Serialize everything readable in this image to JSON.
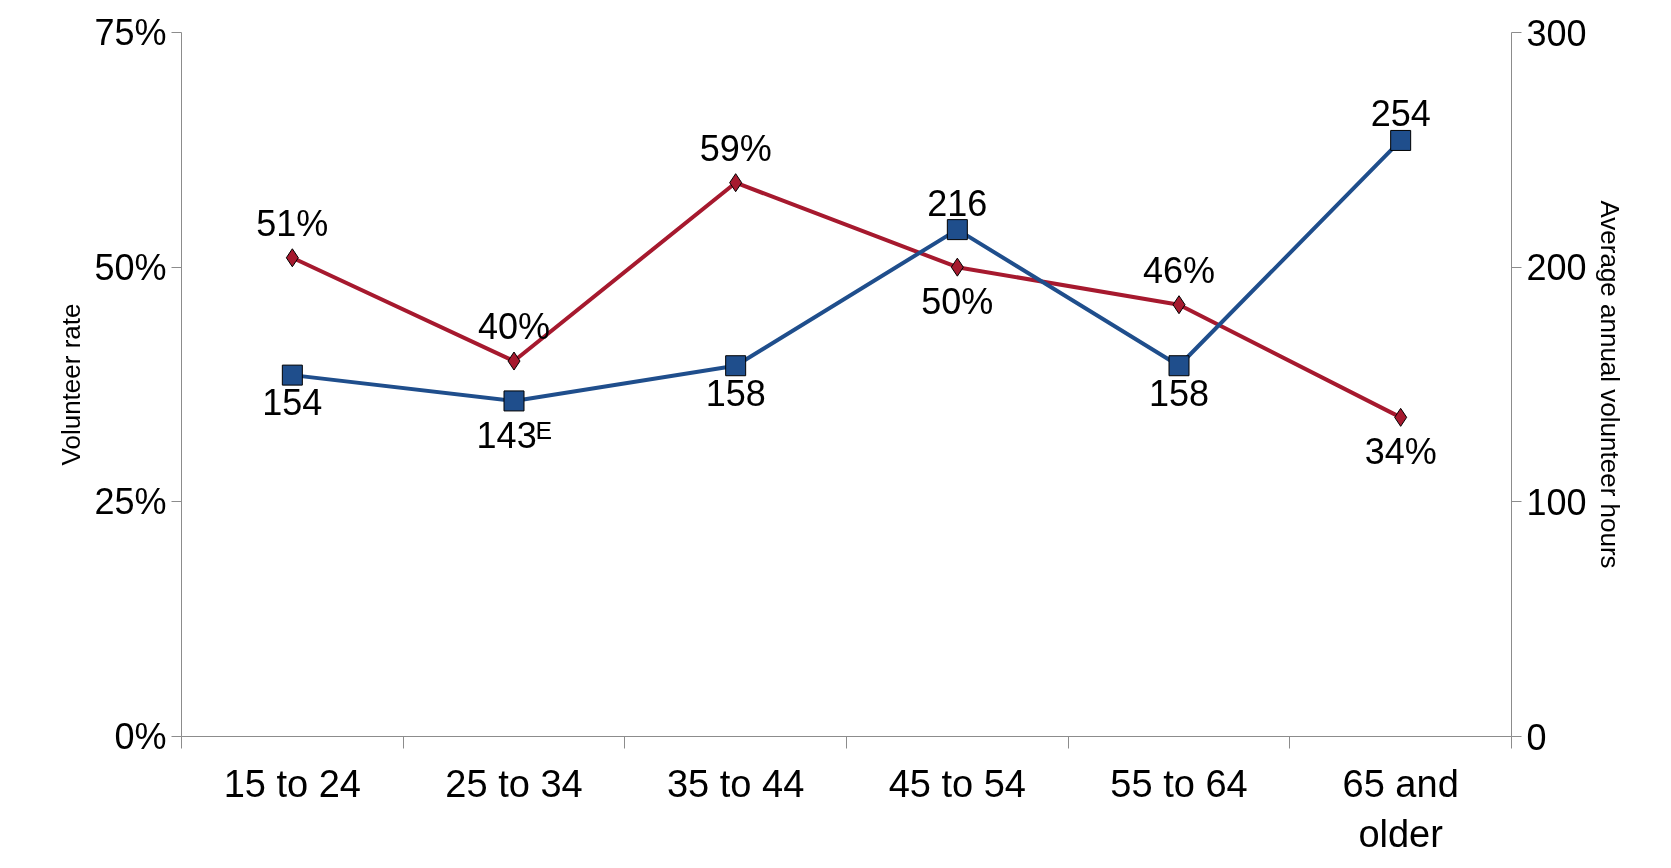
{
  "chart_data": {
    "type": "line",
    "categories": [
      "15 to 24",
      "25 to 34",
      "35 to 44",
      "45 to 54",
      "55 to 64",
      "65 and older"
    ],
    "ylabel": "Volunteer rate",
    "y2label": "Average annual volunteer hours",
    "ylim": [
      0,
      75
    ],
    "yticks": [
      {
        "value": 0,
        "label": "0%"
      },
      {
        "value": 25,
        "label": "25%"
      },
      {
        "value": 50,
        "label": "50%"
      },
      {
        "value": 75,
        "label": "75%"
      }
    ],
    "y2lim": [
      0,
      300
    ],
    "y2ticks": [
      0,
      100,
      200,
      300
    ],
    "grid": false,
    "series": [
      {
        "color": "#a6192e",
        "marker": "diamond",
        "values": [
          51,
          40,
          59,
          50,
          46,
          34
        ],
        "value_labels": [
          "51%",
          "40%",
          "59%",
          "50%",
          "46%",
          "34%"
        ]
      },
      {
        "color": "#1f4e8c",
        "marker": "square",
        "axis": "y2",
        "values": [
          154,
          143,
          158,
          216,
          158,
          254
        ],
        "value_labels": [
          "154",
          "143ᴱ",
          "158",
          "216",
          "158",
          "254"
        ]
      }
    ]
  }
}
